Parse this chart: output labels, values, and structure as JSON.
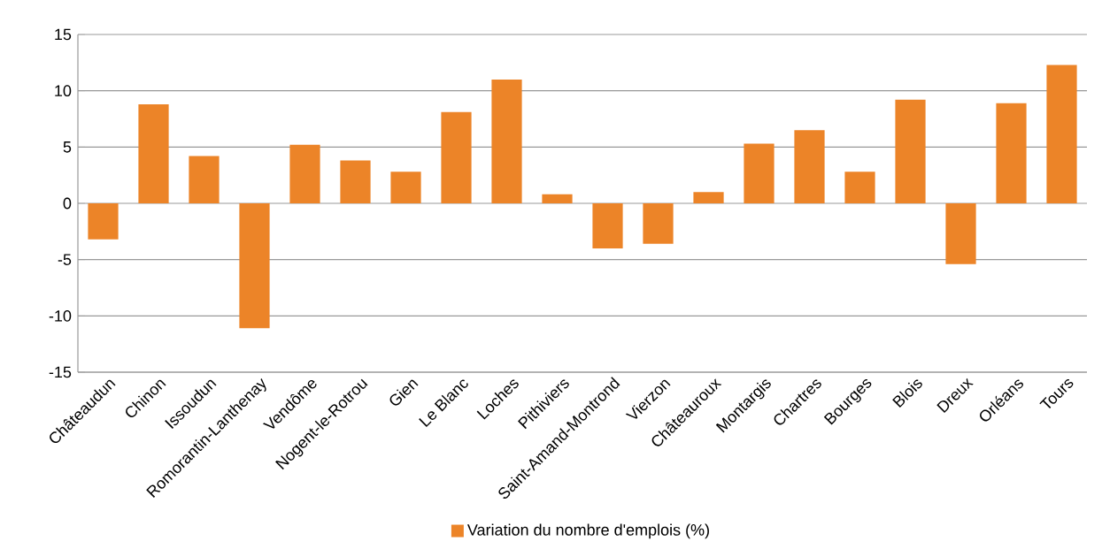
{
  "chart_data": {
    "type": "bar",
    "categories": [
      "Châteaudun",
      "Chinon",
      "Issoudun",
      "Romorantin-Lanthenay",
      "Vendôme",
      "Nogent-le-Rotrou",
      "Gien",
      "Le Blanc",
      "Loches",
      "Pithiviers",
      "Saint-Amand-Montrond",
      "Vierzon",
      "Châteauroux",
      "Montargis",
      "Chartres",
      "Bourges",
      "Blois",
      "Dreux",
      "Orléans",
      "Tours"
    ],
    "series": [
      {
        "name": "Variation du nombre d'emplois (%)",
        "color": "#ec8428",
        "values": [
          -3.2,
          8.8,
          4.2,
          -11.1,
          5.2,
          3.8,
          2.8,
          8.1,
          11.0,
          0.8,
          -4.0,
          -3.6,
          1.0,
          5.3,
          6.5,
          2.8,
          9.2,
          -5.4,
          8.9,
          12.3
        ]
      }
    ],
    "ylim": [
      -15,
      15
    ],
    "yticks": [
      -15,
      -10,
      -5,
      0,
      5,
      10,
      15
    ],
    "grid": "y",
    "legend": "bottom"
  }
}
